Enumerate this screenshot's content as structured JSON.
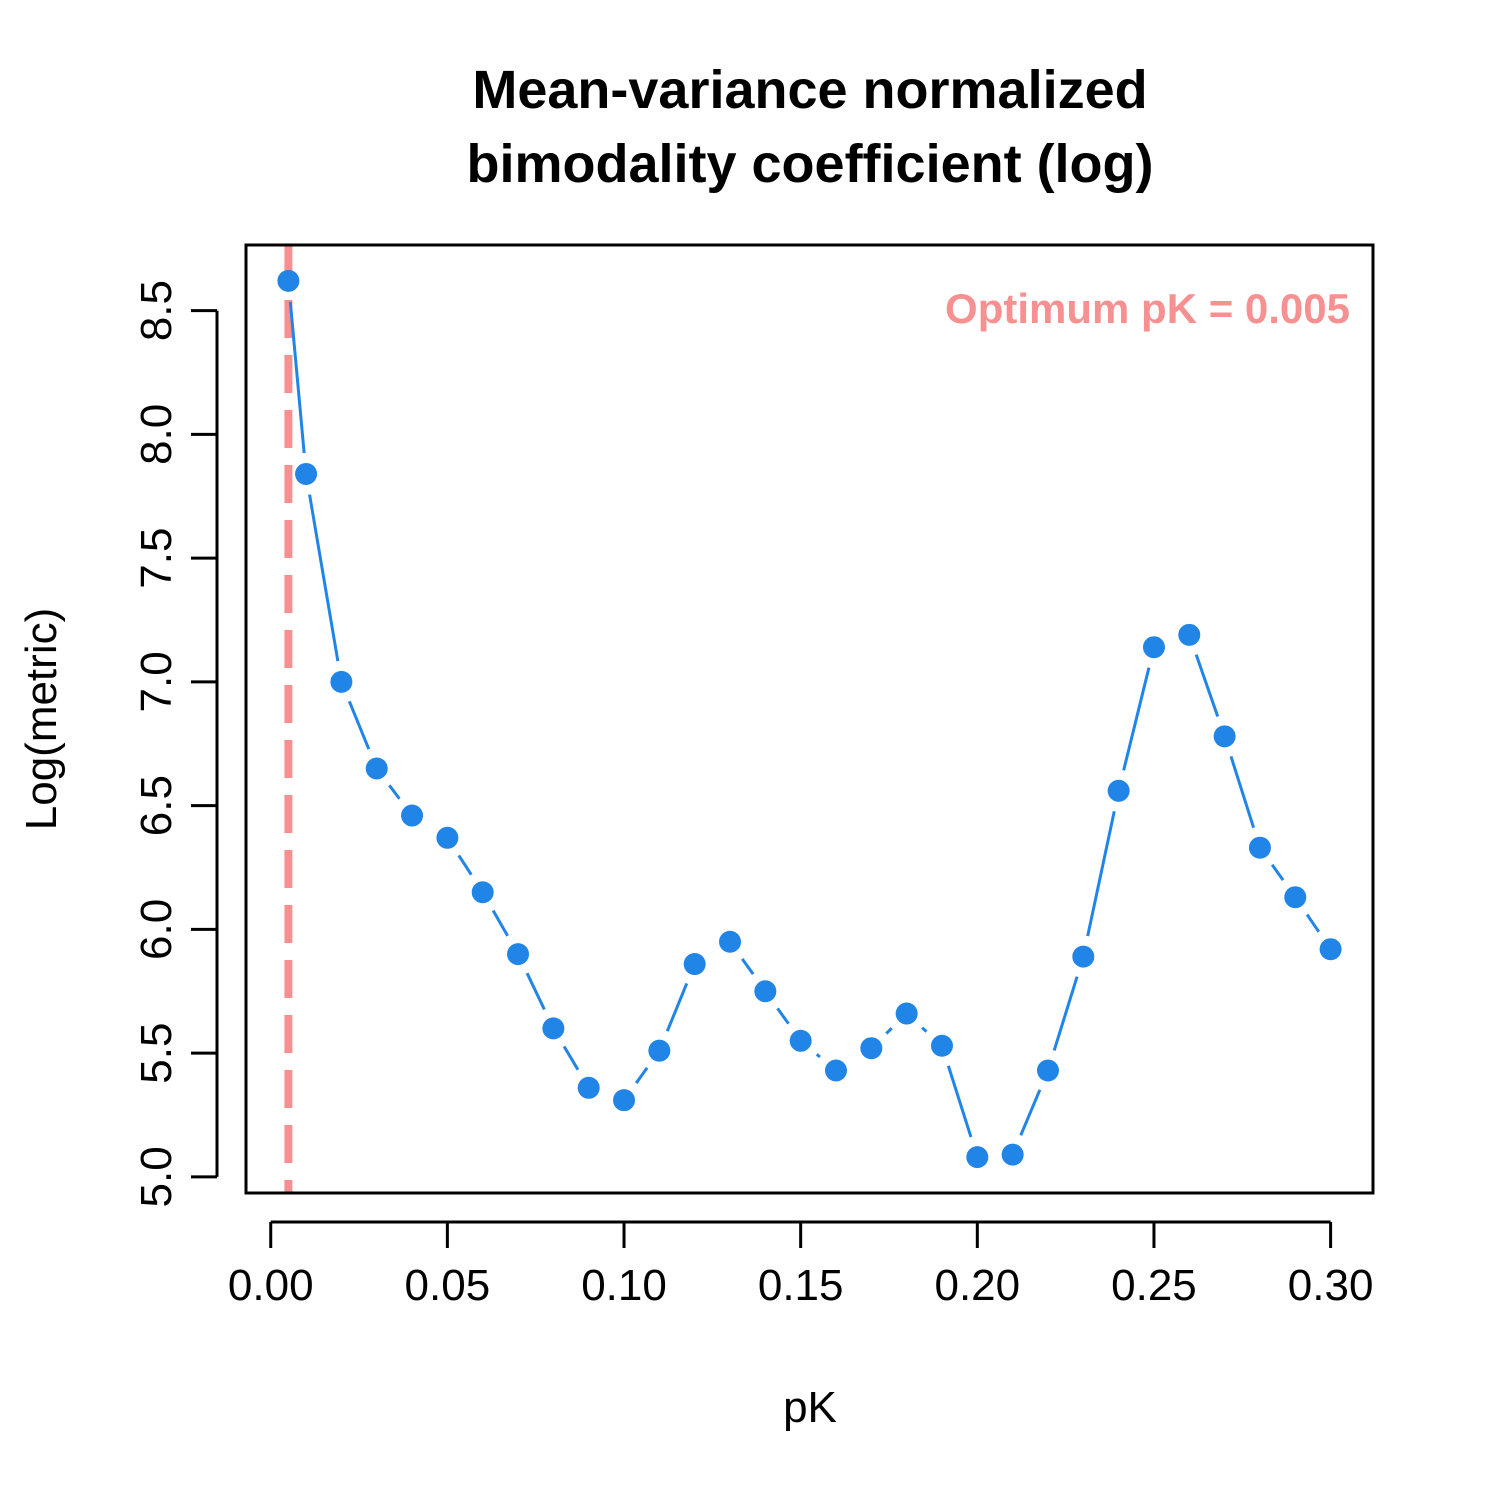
{
  "chart_data": {
    "type": "line",
    "title_lines": [
      "Mean-variance normalized",
      "bimodality coefficient (log)"
    ],
    "xlabel": "pK",
    "ylabel": "Log(metric)",
    "xlim": [
      -0.007,
      0.312
    ],
    "ylim": [
      4.935,
      8.765
    ],
    "x_ticks": [
      0.0,
      0.05,
      0.1,
      0.15,
      0.2,
      0.25,
      0.3
    ],
    "x_tick_labels": [
      "0.00",
      "0.05",
      "0.10",
      "0.15",
      "0.20",
      "0.25",
      "0.30"
    ],
    "y_ticks": [
      5.0,
      5.5,
      6.0,
      6.5,
      7.0,
      7.5,
      8.0,
      8.5
    ],
    "y_tick_labels": [
      "5.0",
      "5.5",
      "6.0",
      "6.5",
      "7.0",
      "7.5",
      "8.0",
      "8.5"
    ],
    "grid": false,
    "series": [
      {
        "color": "#2185e8",
        "x": [
          0.005,
          0.01,
          0.02,
          0.03,
          0.04,
          0.05,
          0.06,
          0.07,
          0.08,
          0.09,
          0.1,
          0.11,
          0.12,
          0.13,
          0.14,
          0.15,
          0.16,
          0.17,
          0.18,
          0.19,
          0.2,
          0.21,
          0.22,
          0.23,
          0.24,
          0.25,
          0.26,
          0.27,
          0.28,
          0.29,
          0.3
        ],
        "y": [
          8.62,
          7.84,
          7.0,
          6.65,
          6.46,
          6.37,
          6.15,
          5.9,
          5.6,
          5.36,
          5.31,
          5.51,
          5.86,
          5.95,
          5.75,
          5.55,
          5.43,
          5.52,
          5.66,
          5.53,
          5.08,
          5.09,
          5.43,
          5.89,
          6.56,
          7.14,
          7.19,
          6.78,
          6.33,
          6.13,
          5.92
        ]
      }
    ],
    "optimum": {
      "x": 0.005,
      "label": "Optimum pK = 0.005",
      "color": "#f79191"
    }
  }
}
